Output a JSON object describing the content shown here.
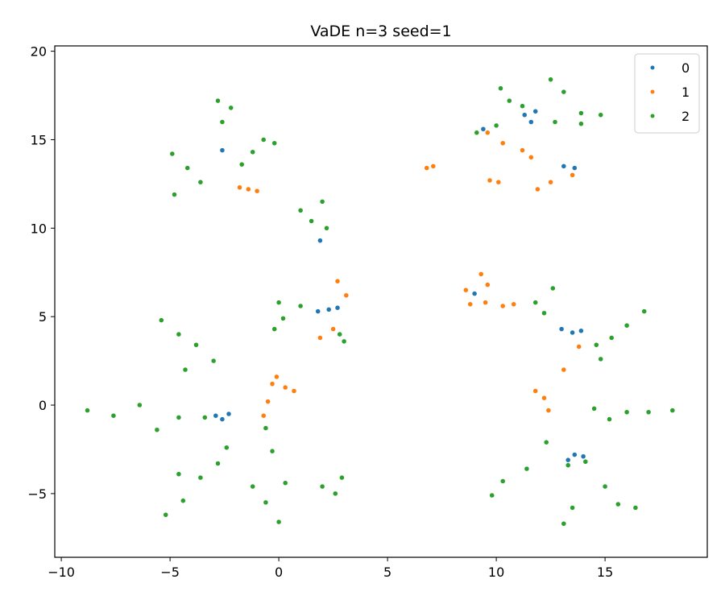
{
  "chart_data": {
    "type": "scatter",
    "title": "VaDE n=3 seed=1",
    "xlabel": "",
    "ylabel": "",
    "xlim": [
      -10.3,
      19.7
    ],
    "ylim": [
      -8.6,
      20.3
    ],
    "xticks": [
      -10,
      -5,
      0,
      5,
      10,
      15
    ],
    "yticks": [
      -5,
      0,
      5,
      10,
      15,
      20
    ],
    "xtick_labels": [
      "−10",
      "−5",
      "0",
      "5",
      "10",
      "15"
    ],
    "ytick_labels": [
      "−5",
      "0",
      "5",
      "10",
      "15",
      "20"
    ],
    "grid": false,
    "legend": {
      "placement": "top-right",
      "entries": [
        "0",
        "1",
        "2"
      ]
    },
    "series": [
      {
        "name": "0",
        "color": "#1f77b4",
        "points": [
          [
            -2.6,
            14.4
          ],
          [
            -2.9,
            -0.6
          ],
          [
            -2.6,
            -0.8
          ],
          [
            -2.3,
            -0.5
          ],
          [
            1.8,
            5.3
          ],
          [
            2.3,
            5.4
          ],
          [
            2.7,
            5.5
          ],
          [
            1.9,
            9.3
          ],
          [
            9.0,
            6.3
          ],
          [
            9.4,
            15.6
          ],
          [
            11.3,
            16.4
          ],
          [
            11.8,
            16.6
          ],
          [
            11.6,
            16.0
          ],
          [
            13.1,
            13.5
          ],
          [
            13.6,
            13.4
          ],
          [
            13.0,
            4.3
          ],
          [
            13.5,
            4.1
          ],
          [
            13.9,
            4.2
          ],
          [
            13.3,
            -3.1
          ],
          [
            13.6,
            -2.8
          ],
          [
            14.0,
            -2.9
          ]
        ]
      },
      {
        "name": "1",
        "color": "#ff7f0e",
        "points": [
          [
            -1.8,
            12.3
          ],
          [
            -1.4,
            12.2
          ],
          [
            -1.0,
            12.1
          ],
          [
            -0.3,
            1.2
          ],
          [
            0.3,
            1.0
          ],
          [
            -0.1,
            1.6
          ],
          [
            0.7,
            0.8
          ],
          [
            -0.5,
            0.2
          ],
          [
            -0.7,
            -0.6
          ],
          [
            2.7,
            7.0
          ],
          [
            3.1,
            6.2
          ],
          [
            2.5,
            4.3
          ],
          [
            1.9,
            3.8
          ],
          [
            7.1,
            13.5
          ],
          [
            6.8,
            13.4
          ],
          [
            9.6,
            15.4
          ],
          [
            10.3,
            14.8
          ],
          [
            11.2,
            14.4
          ],
          [
            11.6,
            14.0
          ],
          [
            10.1,
            12.6
          ],
          [
            9.7,
            12.7
          ],
          [
            11.9,
            12.2
          ],
          [
            12.5,
            12.6
          ],
          [
            13.5,
            13.0
          ],
          [
            8.6,
            6.5
          ],
          [
            9.3,
            7.4
          ],
          [
            9.6,
            6.8
          ],
          [
            8.8,
            5.7
          ],
          [
            9.5,
            5.8
          ],
          [
            10.3,
            5.6
          ],
          [
            10.8,
            5.7
          ],
          [
            11.8,
            0.8
          ],
          [
            12.2,
            0.4
          ],
          [
            12.4,
            -0.3
          ],
          [
            13.1,
            2.0
          ],
          [
            13.8,
            3.3
          ]
        ]
      },
      {
        "name": "2",
        "color": "#2ca02c",
        "points": [
          [
            -4.9,
            14.2
          ],
          [
            -4.2,
            13.4
          ],
          [
            -3.6,
            12.6
          ],
          [
            -4.8,
            11.9
          ],
          [
            -2.8,
            17.2
          ],
          [
            -2.2,
            16.8
          ],
          [
            -2.6,
            16.0
          ],
          [
            -1.2,
            14.3
          ],
          [
            -0.2,
            14.8
          ],
          [
            -1.7,
            13.6
          ],
          [
            -0.7,
            15.0
          ],
          [
            1.0,
            11.0
          ],
          [
            2.0,
            11.5
          ],
          [
            2.2,
            10.0
          ],
          [
            1.5,
            10.4
          ],
          [
            0.0,
            5.8
          ],
          [
            1.0,
            5.6
          ],
          [
            0.2,
            4.9
          ],
          [
            -0.2,
            4.3
          ],
          [
            3.0,
            3.6
          ],
          [
            2.8,
            4.0
          ],
          [
            -5.4,
            4.8
          ],
          [
            -4.6,
            4.0
          ],
          [
            -3.8,
            3.4
          ],
          [
            -3.0,
            2.5
          ],
          [
            -4.3,
            2.0
          ],
          [
            -8.8,
            -0.3
          ],
          [
            -7.6,
            -0.6
          ],
          [
            -6.4,
            0.0
          ],
          [
            -5.6,
            -1.4
          ],
          [
            -4.6,
            -0.7
          ],
          [
            -3.4,
            -0.7
          ],
          [
            -5.2,
            -6.2
          ],
          [
            -4.4,
            -5.4
          ],
          [
            -3.6,
            -4.1
          ],
          [
            -2.8,
            -3.3
          ],
          [
            -4.6,
            -3.9
          ],
          [
            -2.4,
            -2.4
          ],
          [
            -1.2,
            -4.6
          ],
          [
            -0.6,
            -5.5
          ],
          [
            0.0,
            -6.6
          ],
          [
            0.3,
            -4.4
          ],
          [
            -0.3,
            -2.6
          ],
          [
            -0.6,
            -1.3
          ],
          [
            2.0,
            -4.6
          ],
          [
            2.6,
            -5.0
          ],
          [
            2.9,
            -4.1
          ],
          [
            9.8,
            -5.1
          ],
          [
            10.3,
            -4.3
          ],
          [
            11.4,
            -3.6
          ],
          [
            12.3,
            -2.1
          ],
          [
            13.1,
            -6.7
          ],
          [
            13.5,
            -5.8
          ],
          [
            13.3,
            -3.4
          ],
          [
            14.1,
            -3.2
          ],
          [
            15.0,
            -4.6
          ],
          [
            15.6,
            -5.6
          ],
          [
            16.4,
            -5.8
          ],
          [
            15.2,
            -0.8
          ],
          [
            16.0,
            -0.4
          ],
          [
            17.0,
            -0.4
          ],
          [
            18.1,
            -0.3
          ],
          [
            14.5,
            -0.2
          ],
          [
            14.6,
            3.4
          ],
          [
            15.3,
            3.8
          ],
          [
            16.0,
            4.5
          ],
          [
            16.8,
            5.3
          ],
          [
            14.8,
            2.6
          ],
          [
            11.8,
            5.8
          ],
          [
            12.6,
            6.6
          ],
          [
            12.2,
            5.2
          ],
          [
            10.2,
            17.9
          ],
          [
            10.6,
            17.2
          ],
          [
            11.2,
            16.9
          ],
          [
            10.0,
            15.8
          ],
          [
            9.1,
            15.4
          ],
          [
            12.5,
            18.4
          ],
          [
            13.1,
            17.7
          ],
          [
            13.9,
            16.5
          ],
          [
            14.8,
            16.4
          ],
          [
            12.7,
            16.0
          ],
          [
            13.9,
            15.9
          ]
        ]
      }
    ]
  }
}
